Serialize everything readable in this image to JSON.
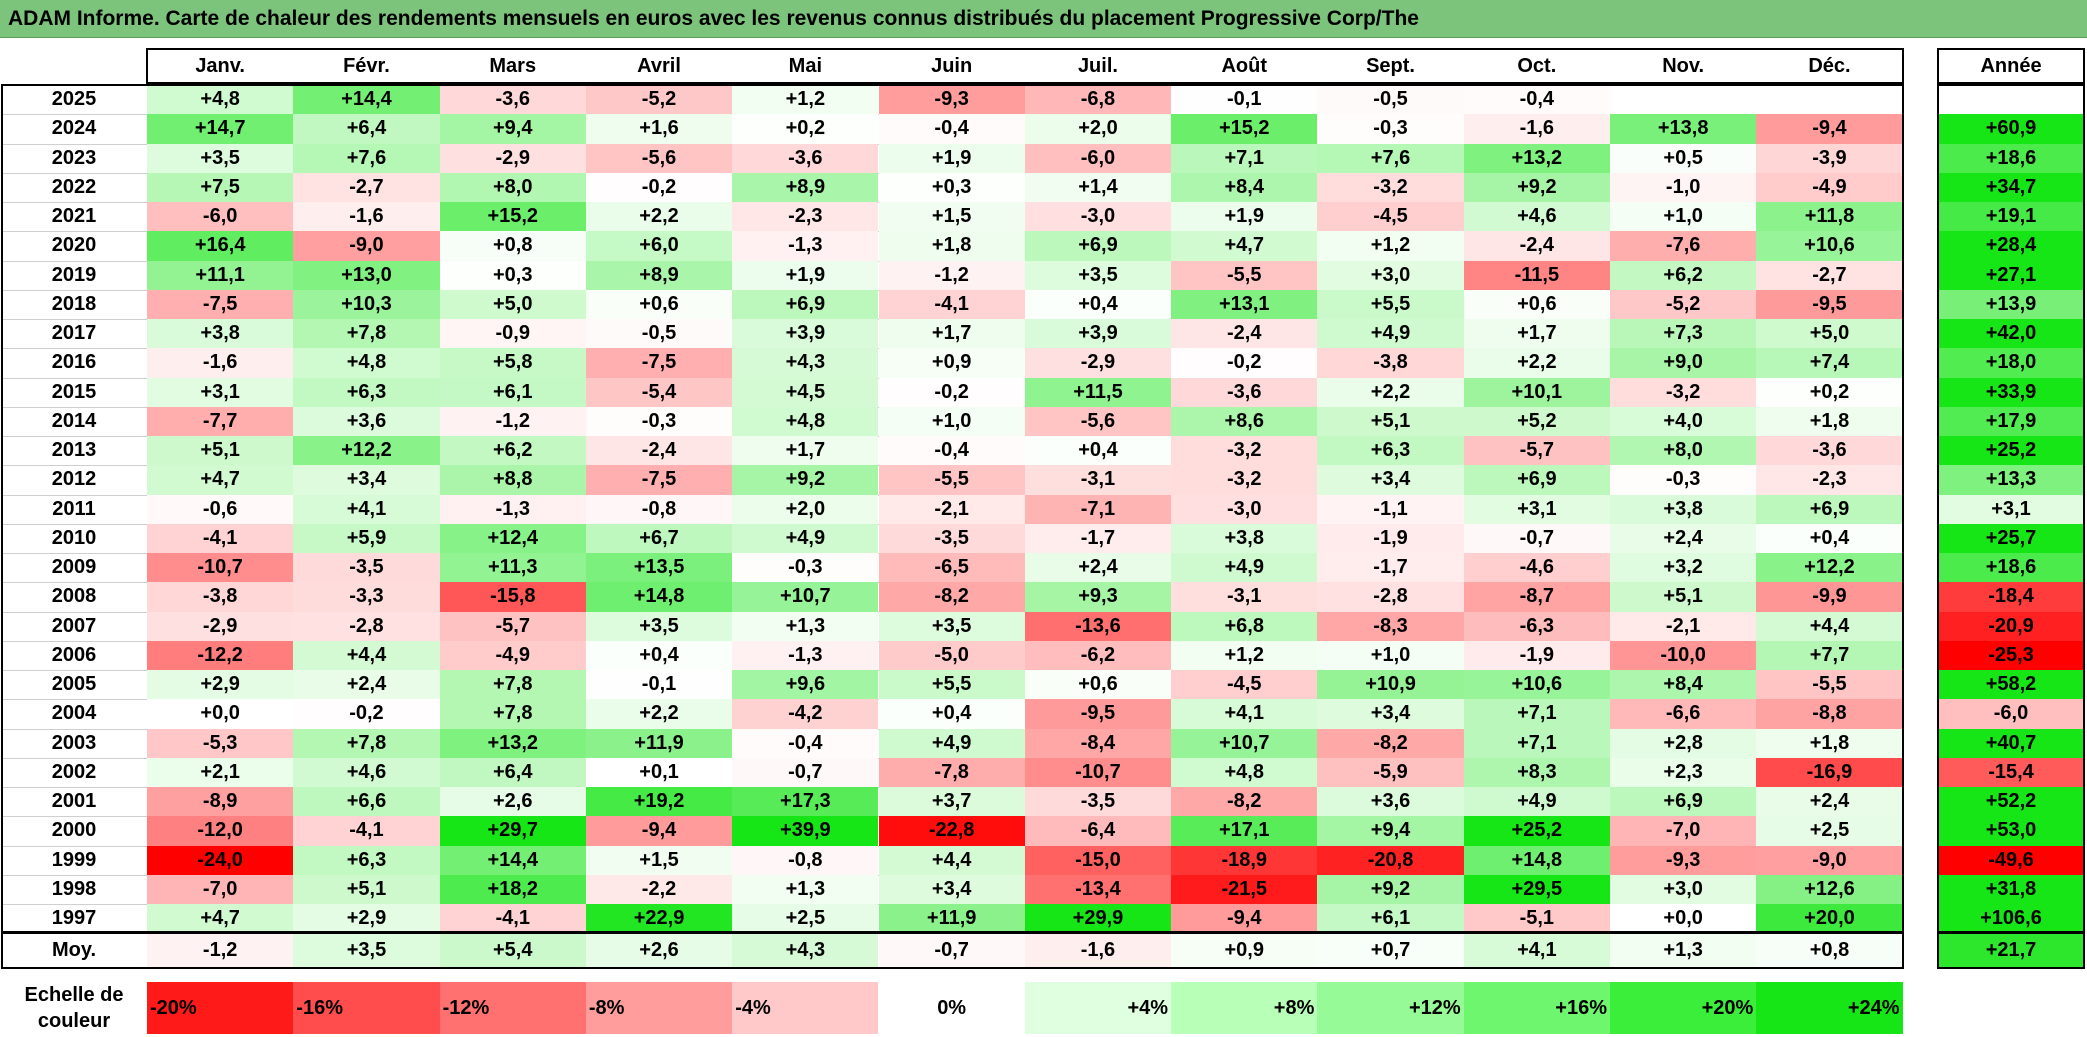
{
  "title": "ADAM Informe. Carte de chaleur des rendements mensuels en euros avec les revenus connus distribués du placement Progressive Corp/The",
  "chart_data": {
    "type": "heatmap",
    "columns": [
      "Janv.",
      "Févr.",
      "Mars",
      "Avril",
      "Mai",
      "Juin",
      "Juil.",
      "Août",
      "Sept.",
      "Oct.",
      "Nov.",
      "Déc."
    ],
    "year_header": "Année",
    "rows": [
      {
        "year": "2025",
        "values": [
          "+4,8",
          "+14,4",
          "-3,6",
          "-5,2",
          "+1,2",
          "-9,3",
          "-6,8",
          "-0,1",
          "-0,5",
          "-0,4",
          "",
          ""
        ],
        "annual": ""
      },
      {
        "year": "2024",
        "values": [
          "+14,7",
          "+6,4",
          "+9,4",
          "+1,6",
          "+0,2",
          "-0,4",
          "+2,0",
          "+15,2",
          "-0,3",
          "-1,6",
          "+13,8",
          "-9,4"
        ],
        "annual": "+60,9"
      },
      {
        "year": "2023",
        "values": [
          "+3,5",
          "+7,6",
          "-2,9",
          "-5,6",
          "-3,6",
          "+1,9",
          "-6,0",
          "+7,1",
          "+7,6",
          "+13,2",
          "+0,5",
          "-3,9"
        ],
        "annual": "+18,6"
      },
      {
        "year": "2022",
        "values": [
          "+7,5",
          "-2,7",
          "+8,0",
          "-0,2",
          "+8,9",
          "+0,3",
          "+1,4",
          "+8,4",
          "-3,2",
          "+9,2",
          "-1,0",
          "-4,9"
        ],
        "annual": "+34,7"
      },
      {
        "year": "2021",
        "values": [
          "-6,0",
          "-1,6",
          "+15,2",
          "+2,2",
          "-2,3",
          "+1,5",
          "-3,0",
          "+1,9",
          "-4,5",
          "+4,6",
          "+1,0",
          "+11,8"
        ],
        "annual": "+19,1"
      },
      {
        "year": "2020",
        "values": [
          "+16,4",
          "-9,0",
          "+0,8",
          "+6,0",
          "-1,3",
          "+1,8",
          "+6,9",
          "+4,7",
          "+1,2",
          "-2,4",
          "-7,6",
          "+10,6"
        ],
        "annual": "+28,4"
      },
      {
        "year": "2019",
        "values": [
          "+11,1",
          "+13,0",
          "+0,3",
          "+8,9",
          "+1,9",
          "-1,2",
          "+3,5",
          "-5,5",
          "+3,0",
          "-11,5",
          "+6,2",
          "-2,7"
        ],
        "annual": "+27,1"
      },
      {
        "year": "2018",
        "values": [
          "-7,5",
          "+10,3",
          "+5,0",
          "+0,6",
          "+6,9",
          "-4,1",
          "+0,4",
          "+13,1",
          "+5,5",
          "+0,6",
          "-5,2",
          "-9,5"
        ],
        "annual": "+13,9"
      },
      {
        "year": "2017",
        "values": [
          "+3,8",
          "+7,8",
          "-0,9",
          "-0,5",
          "+3,9",
          "+1,7",
          "+3,9",
          "-2,4",
          "+4,9",
          "+1,7",
          "+7,3",
          "+5,0"
        ],
        "annual": "+42,0"
      },
      {
        "year": "2016",
        "values": [
          "-1,6",
          "+4,8",
          "+5,8",
          "-7,5",
          "+4,3",
          "+0,9",
          "-2,9",
          "-0,2",
          "-3,8",
          "+2,2",
          "+9,0",
          "+7,4"
        ],
        "annual": "+18,0"
      },
      {
        "year": "2015",
        "values": [
          "+3,1",
          "+6,3",
          "+6,1",
          "-5,4",
          "+4,5",
          "-0,2",
          "+11,5",
          "-3,6",
          "+2,2",
          "+10,1",
          "-3,2",
          "+0,2"
        ],
        "annual": "+33,9"
      },
      {
        "year": "2014",
        "values": [
          "-7,7",
          "+3,6",
          "-1,2",
          "-0,3",
          "+4,8",
          "+1,0",
          "-5,6",
          "+8,6",
          "+5,1",
          "+5,2",
          "+4,0",
          "+1,8"
        ],
        "annual": "+17,9"
      },
      {
        "year": "2013",
        "values": [
          "+5,1",
          "+12,2",
          "+6,2",
          "-2,4",
          "+1,7",
          "-0,4",
          "+0,4",
          "-3,2",
          "+6,3",
          "-5,7",
          "+8,0",
          "-3,6"
        ],
        "annual": "+25,2"
      },
      {
        "year": "2012",
        "values": [
          "+4,7",
          "+3,4",
          "+8,8",
          "-7,5",
          "+9,2",
          "-5,5",
          "-3,1",
          "-3,2",
          "+3,4",
          "+6,9",
          "-0,3",
          "-2,3"
        ],
        "annual": "+13,3"
      },
      {
        "year": "2011",
        "values": [
          "-0,6",
          "+4,1",
          "-1,3",
          "-0,8",
          "+2,0",
          "-2,1",
          "-7,1",
          "-3,0",
          "-1,1",
          "+3,1",
          "+3,8",
          "+6,9"
        ],
        "annual": "+3,1"
      },
      {
        "year": "2010",
        "values": [
          "-4,1",
          "+5,9",
          "+12,4",
          "+6,7",
          "+4,9",
          "-3,5",
          "-1,7",
          "+3,8",
          "-1,9",
          "-0,7",
          "+2,4",
          "+0,4"
        ],
        "annual": "+25,7"
      },
      {
        "year": "2009",
        "values": [
          "-10,7",
          "-3,5",
          "+11,3",
          "+13,5",
          "-0,3",
          "-6,5",
          "+2,4",
          "+4,9",
          "-1,7",
          "-4,6",
          "+3,2",
          "+12,2"
        ],
        "annual": "+18,6"
      },
      {
        "year": "2008",
        "values": [
          "-3,8",
          "-3,3",
          "-15,8",
          "+14,8",
          "+10,7",
          "-8,2",
          "+9,3",
          "-3,1",
          "-2,8",
          "-8,7",
          "+5,1",
          "-9,9"
        ],
        "annual": "-18,4"
      },
      {
        "year": "2007",
        "values": [
          "-2,9",
          "-2,8",
          "-5,7",
          "+3,5",
          "+1,3",
          "+3,5",
          "-13,6",
          "+6,8",
          "-8,3",
          "-6,3",
          "-2,1",
          "+4,4"
        ],
        "annual": "-20,9"
      },
      {
        "year": "2006",
        "values": [
          "-12,2",
          "+4,4",
          "-4,9",
          "+0,4",
          "-1,3",
          "-5,0",
          "-6,2",
          "+1,2",
          "+1,0",
          "-1,9",
          "-10,0",
          "+7,7"
        ],
        "annual": "-25,3"
      },
      {
        "year": "2005",
        "values": [
          "+2,9",
          "+2,4",
          "+7,8",
          "-0,1",
          "+9,6",
          "+5,5",
          "+0,6",
          "-4,5",
          "+10,9",
          "+10,6",
          "+8,4",
          "-5,5"
        ],
        "annual": "+58,2"
      },
      {
        "year": "2004",
        "values": [
          "+0,0",
          "-0,2",
          "+7,8",
          "+2,2",
          "-4,2",
          "+0,4",
          "-9,5",
          "+4,1",
          "+3,4",
          "+7,1",
          "-6,6",
          "-8,8"
        ],
        "annual": "-6,0"
      },
      {
        "year": "2003",
        "values": [
          "-5,3",
          "+7,8",
          "+13,2",
          "+11,9",
          "-0,4",
          "+4,9",
          "-8,4",
          "+10,7",
          "-8,2",
          "+7,1",
          "+2,8",
          "+1,8"
        ],
        "annual": "+40,7"
      },
      {
        "year": "2002",
        "values": [
          "+2,1",
          "+4,6",
          "+6,4",
          "+0,1",
          "-0,7",
          "-7,8",
          "-10,7",
          "+4,8",
          "-5,9",
          "+8,3",
          "+2,3",
          "-16,9"
        ],
        "annual": "-15,4"
      },
      {
        "year": "2001",
        "values": [
          "-8,9",
          "+6,6",
          "+2,6",
          "+19,2",
          "+17,3",
          "+3,7",
          "-3,5",
          "-8,2",
          "+3,6",
          "+4,9",
          "+6,9",
          "+2,4"
        ],
        "annual": "+52,2"
      },
      {
        "year": "2000",
        "values": [
          "-12,0",
          "-4,1",
          "+29,7",
          "-9,4",
          "+39,9",
          "-22,8",
          "-6,4",
          "+17,1",
          "+9,4",
          "+25,2",
          "-7,0",
          "+2,5"
        ],
        "annual": "+53,0"
      },
      {
        "year": "1999",
        "values": [
          "-24,0",
          "+6,3",
          "+14,4",
          "+1,5",
          "-0,8",
          "+4,4",
          "-15,0",
          "-18,9",
          "-20,8",
          "+14,8",
          "-9,3",
          "-9,0"
        ],
        "annual": "-49,6"
      },
      {
        "year": "1998",
        "values": [
          "-7,0",
          "+5,1",
          "+18,2",
          "-2,2",
          "+1,3",
          "+3,4",
          "-13,4",
          "-21,5",
          "+9,2",
          "+29,5",
          "+3,0",
          "+12,6"
        ],
        "annual": "+31,8"
      },
      {
        "year": "1997",
        "values": [
          "+4,7",
          "+2,9",
          "-4,1",
          "+22,9",
          "+2,5",
          "+11,9",
          "+29,9",
          "-9,4",
          "+6,1",
          "-5,1",
          "+0,0",
          "+20,0"
        ],
        "annual": "+106,6"
      }
    ],
    "average": {
      "label": "Moy.",
      "values": [
        "-1,2",
        "+3,5",
        "+5,4",
        "+2,6",
        "+4,3",
        "-0,7",
        "-1,6",
        "+0,9",
        "+0,7",
        "+4,1",
        "+1,3",
        "+0,8"
      ],
      "annual": "+21,7"
    },
    "legend": {
      "label": "Echelle de couleur",
      "steps": [
        {
          "text": "-20%",
          "color": "#ff1a1a"
        },
        {
          "text": "-16%",
          "color": "#ff4d4d"
        },
        {
          "text": "-12%",
          "color": "#ff7070"
        },
        {
          "text": "-8%",
          "color": "#ff9c9c"
        },
        {
          "text": "-4%",
          "color": "#ffc9c9"
        },
        {
          "text": "0%",
          "color": "#ffffff"
        },
        {
          "text": "+4%",
          "color": "#e0ffe0"
        },
        {
          "text": "+8%",
          "color": "#b8ffb8"
        },
        {
          "text": "+12%",
          "color": "#96fa96"
        },
        {
          "text": "+16%",
          "color": "#6ef66e"
        },
        {
          "text": "+20%",
          "color": "#3aee3a"
        },
        {
          "text": "+24%",
          "color": "#16e616"
        }
      ]
    }
  }
}
